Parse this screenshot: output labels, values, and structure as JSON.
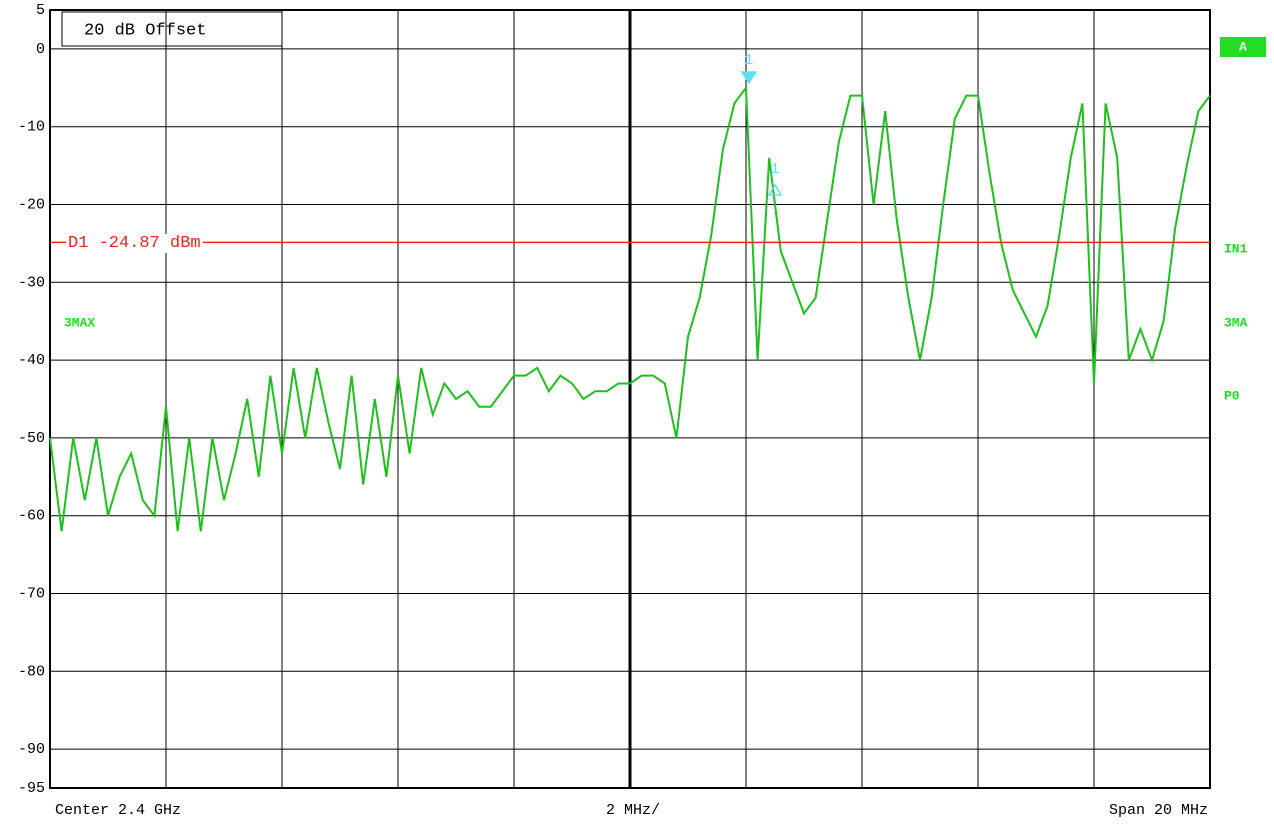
{
  "chart_data": {
    "type": "line",
    "annotation_box": "20 dB Offset",
    "trace_label": "3MAX",
    "side_labels": [
      "A",
      "IN1",
      "3MA",
      "P0"
    ],
    "footer": {
      "center": "Center 2.4 GHz",
      "division": "2 MHz/",
      "span": "Span 20 MHz"
    },
    "display_line": {
      "label": "D1 -24.87 dBm",
      "value": -24.87,
      "color": "#e8261e"
    },
    "markers": [
      {
        "label": "1",
        "x": 2.40205,
        "value": -4,
        "kind": "marker"
      },
      {
        "label": "1",
        "x": 2.4025,
        "value": -18,
        "kind": "delta"
      }
    ],
    "marker_color": "#5ee0ee",
    "xlim": [
      2.39,
      2.41
    ],
    "xticks": [
      2.39,
      2.392,
      2.394,
      2.396,
      2.398,
      2.4,
      2.402,
      2.404,
      2.406,
      2.408,
      2.41
    ],
    "ylim": [
      -95,
      5
    ],
    "yticks": [
      5,
      0,
      -10,
      -20,
      -30,
      -40,
      -50,
      -60,
      -70,
      -80,
      -90,
      -95
    ],
    "grid": true,
    "series": [
      {
        "name": "3MAX",
        "color": "#1fbf1f",
        "x": [
          2.39,
          2.3902,
          2.3904,
          2.3906,
          2.3908,
          2.391,
          2.3912,
          2.3914,
          2.3916,
          2.3918,
          2.392,
          2.3922,
          2.3924,
          2.3926,
          2.3928,
          2.393,
          2.3932,
          2.3934,
          2.3936,
          2.3938,
          2.394,
          2.3942,
          2.3944,
          2.3946,
          2.3948,
          2.395,
          2.3952,
          2.3954,
          2.3956,
          2.3958,
          2.396,
          2.3962,
          2.3964,
          2.3966,
          2.3968,
          2.397,
          2.3972,
          2.3974,
          2.3976,
          2.3978,
          2.398,
          2.3982,
          2.3984,
          2.3986,
          2.3988,
          2.399,
          2.3992,
          2.3994,
          2.3996,
          2.3998,
          2.4,
          2.4002,
          2.4004,
          2.4006,
          2.4008,
          2.401,
          2.4012,
          2.4014,
          2.4016,
          2.4018,
          2.402,
          2.4022,
          2.4024,
          2.4026,
          2.4028,
          2.403,
          2.4032,
          2.4034,
          2.4036,
          2.4038,
          2.404,
          2.4042,
          2.4044,
          2.4046,
          2.4048,
          2.405,
          2.4052,
          2.4054,
          2.4056,
          2.4058,
          2.406,
          2.4062,
          2.4064,
          2.4066,
          2.4068,
          2.407,
          2.4072,
          2.4074,
          2.4076,
          2.4078,
          2.408,
          2.4082,
          2.4084,
          2.4086,
          2.4088,
          2.409,
          2.4092,
          2.4094,
          2.4096,
          2.4098,
          2.41
        ],
        "values": [
          -50,
          -62,
          -50,
          -58,
          -50,
          -60,
          -55,
          -52,
          -58,
          -60,
          -46,
          -62,
          -50,
          -62,
          -50,
          -58,
          -52,
          -45,
          -55,
          -42,
          -52,
          -41,
          -50,
          -41,
          -48,
          -54,
          -42,
          -56,
          -45,
          -55,
          -42,
          -52,
          -41,
          -47,
          -43,
          -45,
          -44,
          -46,
          -46,
          -44,
          -42,
          -42,
          -41,
          -44,
          -42,
          -43,
          -45,
          -44,
          -44,
          -43,
          -43,
          -42,
          -42,
          -43,
          -50,
          -37,
          -32,
          -24,
          -13,
          -7,
          -5,
          -40,
          -14,
          -26,
          -30,
          -34,
          -32,
          -22,
          -12,
          -6,
          -6,
          -20,
          -8,
          -22,
          -32,
          -40,
          -32,
          -20,
          -9,
          -6,
          -6,
          -16,
          -25,
          -31,
          -34,
          -37,
          -33,
          -24,
          -14,
          -7,
          -43,
          -7,
          -14,
          -40,
          -36,
          -40,
          -35,
          -23,
          -15,
          -8,
          -6
        ]
      }
    ]
  }
}
